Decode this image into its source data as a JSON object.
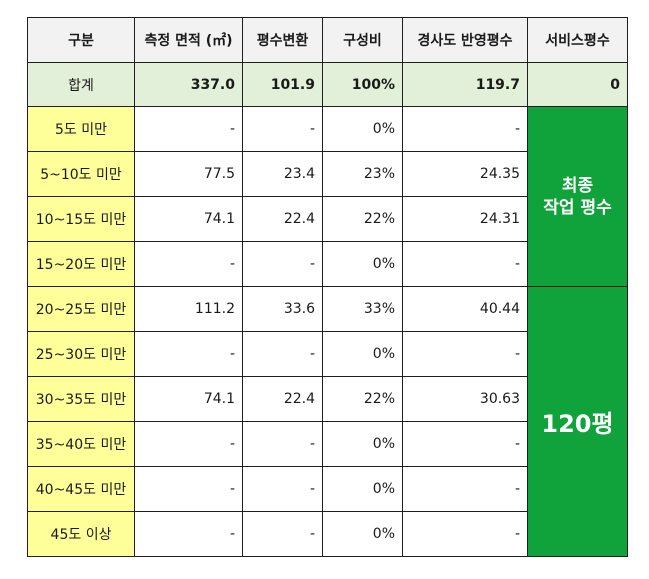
{
  "table": {
    "headers": [
      "구분",
      "측정 면적 (㎡)",
      "평수변환",
      "구성비",
      "경사도 반영평수",
      "서비스평수"
    ],
    "total": {
      "label": "합계",
      "area": "337.0",
      "pyeong": "101.9",
      "ratio": "100%",
      "slope_pyeong": "119.7",
      "service": "0"
    },
    "rows": [
      {
        "label": "5도 미만",
        "area": "-",
        "pyeong": "-",
        "ratio": "0%",
        "slope_pyeong": "-"
      },
      {
        "label": "5~10도 미만",
        "area": "77.5",
        "pyeong": "23.4",
        "ratio": "23%",
        "slope_pyeong": "24.35"
      },
      {
        "label": "10~15도 미만",
        "area": "74.1",
        "pyeong": "22.4",
        "ratio": "22%",
        "slope_pyeong": "24.31"
      },
      {
        "label": "15~20도 미만",
        "area": "-",
        "pyeong": "-",
        "ratio": "0%",
        "slope_pyeong": "-"
      },
      {
        "label": "20~25도 미만",
        "area": "111.2",
        "pyeong": "33.6",
        "ratio": "33%",
        "slope_pyeong": "40.44"
      },
      {
        "label": "25~30도 미만",
        "area": "-",
        "pyeong": "-",
        "ratio": "0%",
        "slope_pyeong": "-"
      },
      {
        "label": "30~35도 미만",
        "area": "74.1",
        "pyeong": "22.4",
        "ratio": "22%",
        "slope_pyeong": "30.63"
      },
      {
        "label": "35~40도 미만",
        "area": "-",
        "pyeong": "-",
        "ratio": "0%",
        "slope_pyeong": "-"
      },
      {
        "label": "40~45도 미만",
        "area": "-",
        "pyeong": "-",
        "ratio": "0%",
        "slope_pyeong": "-"
      },
      {
        "label": "45도 이상",
        "area": "-",
        "pyeong": "-",
        "ratio": "0%",
        "slope_pyeong": "-"
      }
    ],
    "final_work_label_line1": "최종",
    "final_work_label_line2": "작업 평수",
    "final_value": "120평"
  },
  "colors": {
    "header_bg": "#f2f2f2",
    "total_bg": "#e2efd9",
    "category_bg": "#ffff99",
    "highlight_green": "#10a33b"
  }
}
